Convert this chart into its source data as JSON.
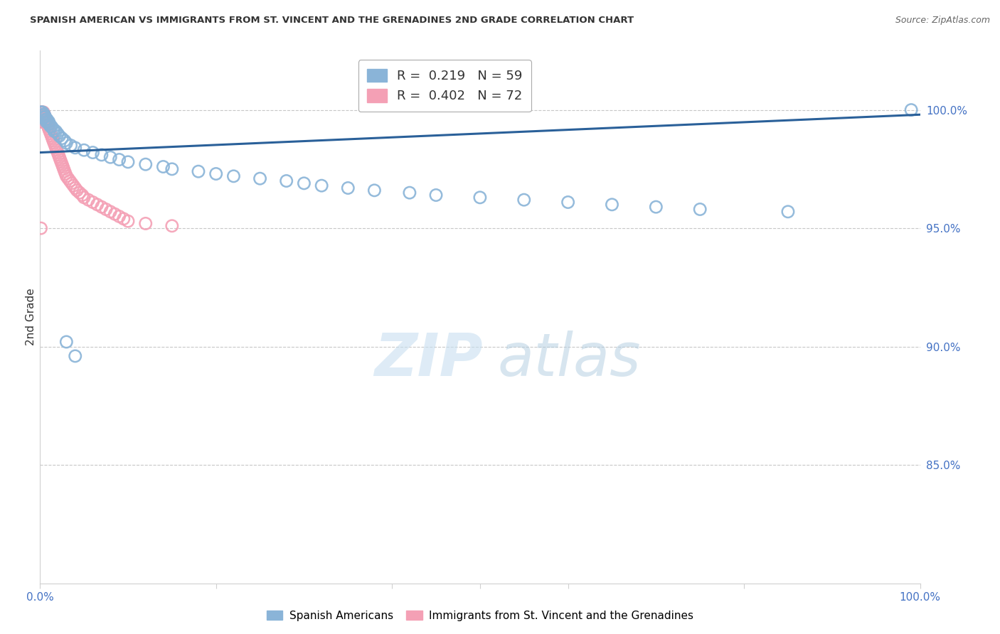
{
  "title": "SPANISH AMERICAN VS IMMIGRANTS FROM ST. VINCENT AND THE GRENADINES 2ND GRADE CORRELATION CHART",
  "source": "Source: ZipAtlas.com",
  "ylabel": "2nd Grade",
  "ylabel_right_ticks": [
    "100.0%",
    "95.0%",
    "90.0%",
    "85.0%"
  ],
  "ylabel_right_values": [
    1.0,
    0.95,
    0.9,
    0.85
  ],
  "xmin": 0.0,
  "xmax": 1.0,
  "ymin": 0.8,
  "ymax": 1.025,
  "legend_r1_r": "0.219",
  "legend_r1_n": "59",
  "legend_r2_r": "0.402",
  "legend_r2_n": "72",
  "color_blue": "#8ab4d8",
  "color_pink": "#f4a0b5",
  "color_line_blue": "#2a6099",
  "watermark_zip": "ZIP",
  "watermark_atlas": "atlas",
  "regression_x0": 0.0,
  "regression_y0": 0.982,
  "regression_x1": 1.0,
  "regression_y1": 0.998,
  "blue_scatter_x": [
    0.001,
    0.002,
    0.003,
    0.003,
    0.004,
    0.004,
    0.005,
    0.005,
    0.006,
    0.006,
    0.007,
    0.007,
    0.008,
    0.009,
    0.01,
    0.01,
    0.011,
    0.012,
    0.013,
    0.015,
    0.016,
    0.018,
    0.02,
    0.022,
    0.025,
    0.028,
    0.03,
    0.035,
    0.04,
    0.05,
    0.06,
    0.07,
    0.08,
    0.09,
    0.1,
    0.12,
    0.14,
    0.15,
    0.18,
    0.2,
    0.22,
    0.25,
    0.28,
    0.3,
    0.32,
    0.35,
    0.38,
    0.42,
    0.45,
    0.5,
    0.55,
    0.6,
    0.65,
    0.7,
    0.75,
    0.85,
    0.99,
    0.03,
    0.04
  ],
  "blue_scatter_y": [
    0.999,
    0.999,
    0.999,
    0.998,
    0.998,
    0.997,
    0.998,
    0.997,
    0.997,
    0.996,
    0.996,
    0.995,
    0.996,
    0.995,
    0.995,
    0.994,
    0.994,
    0.993,
    0.993,
    0.992,
    0.991,
    0.991,
    0.99,
    0.989,
    0.988,
    0.987,
    0.986,
    0.985,
    0.984,
    0.983,
    0.982,
    0.981,
    0.98,
    0.979,
    0.978,
    0.977,
    0.976,
    0.975,
    0.974,
    0.973,
    0.972,
    0.971,
    0.97,
    0.969,
    0.968,
    0.967,
    0.966,
    0.965,
    0.964,
    0.963,
    0.962,
    0.961,
    0.96,
    0.959,
    0.958,
    0.957,
    1.0,
    0.902,
    0.896
  ],
  "pink_scatter_x": [
    0.001,
    0.001,
    0.001,
    0.001,
    0.001,
    0.002,
    0.002,
    0.002,
    0.002,
    0.002,
    0.003,
    0.003,
    0.003,
    0.003,
    0.004,
    0.004,
    0.004,
    0.005,
    0.005,
    0.005,
    0.006,
    0.006,
    0.007,
    0.007,
    0.008,
    0.008,
    0.009,
    0.009,
    0.01,
    0.01,
    0.011,
    0.012,
    0.013,
    0.014,
    0.015,
    0.016,
    0.017,
    0.018,
    0.019,
    0.02,
    0.021,
    0.022,
    0.023,
    0.024,
    0.025,
    0.026,
    0.027,
    0.028,
    0.029,
    0.03,
    0.032,
    0.034,
    0.036,
    0.038,
    0.04,
    0.042,
    0.045,
    0.048,
    0.05,
    0.055,
    0.06,
    0.065,
    0.07,
    0.075,
    0.08,
    0.085,
    0.09,
    0.095,
    0.1,
    0.12,
    0.15,
    0.001
  ],
  "pink_scatter_y": [
    0.999,
    0.998,
    0.997,
    0.996,
    0.995,
    0.999,
    0.998,
    0.997,
    0.996,
    0.995,
    0.999,
    0.998,
    0.997,
    0.996,
    0.999,
    0.998,
    0.997,
    0.998,
    0.997,
    0.996,
    0.997,
    0.996,
    0.996,
    0.995,
    0.995,
    0.994,
    0.994,
    0.993,
    0.993,
    0.992,
    0.991,
    0.99,
    0.989,
    0.988,
    0.987,
    0.986,
    0.985,
    0.984,
    0.983,
    0.982,
    0.981,
    0.98,
    0.979,
    0.978,
    0.977,
    0.976,
    0.975,
    0.974,
    0.973,
    0.972,
    0.971,
    0.97,
    0.969,
    0.968,
    0.967,
    0.966,
    0.965,
    0.964,
    0.963,
    0.962,
    0.961,
    0.96,
    0.959,
    0.958,
    0.957,
    0.956,
    0.955,
    0.954,
    0.953,
    0.952,
    0.951,
    0.95
  ]
}
